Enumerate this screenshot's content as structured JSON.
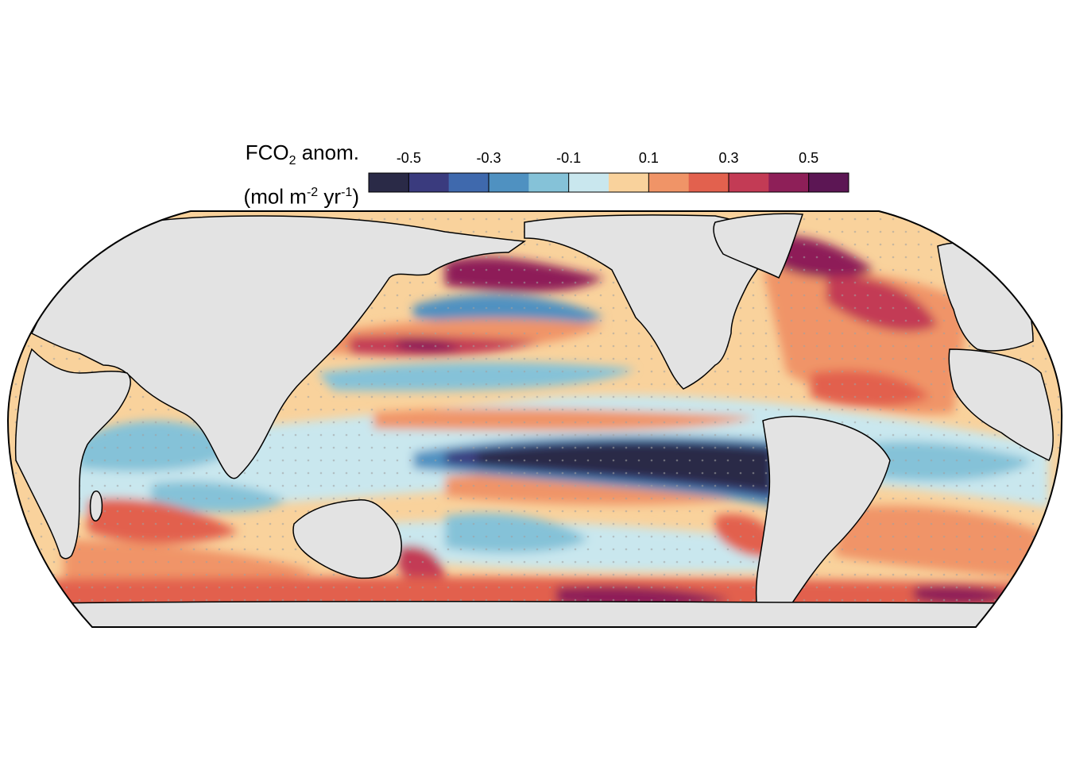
{
  "legend": {
    "title_main": "FCO",
    "title_sub": "2",
    "title_rest": " anom.",
    "unit_open": "(mol m",
    "unit_exp1": "-2",
    "unit_mid": " yr",
    "unit_exp2": "-1",
    "unit_close": ")",
    "tick_labels": [
      "-0.5",
      "-0.3",
      "-0.1",
      "0.1",
      "0.3",
      "0.5"
    ],
    "colors": [
      "#2a2a47",
      "#3a3b7e",
      "#3f69ad",
      "#4f91c1",
      "#85c2d8",
      "#c9e7ee",
      "#f9d29c",
      "#f09467",
      "#e2614e",
      "#c33b55",
      "#8e1f58",
      "#5c1654"
    ]
  },
  "map": {
    "land_color": "#e3e3e3",
    "coast_color": "#000000",
    "stipple_color": "#a0a0a0",
    "regions": [
      {
        "name": "equatorial-pacific-negative-anomaly",
        "level": 0
      },
      {
        "name": "north-atlantic-positive-anomaly",
        "level": 11
      },
      {
        "name": "southern-ocean-positive-anomaly",
        "level": 10
      },
      {
        "name": "north-pacific-positive-anomaly",
        "level": 10
      }
    ]
  }
}
